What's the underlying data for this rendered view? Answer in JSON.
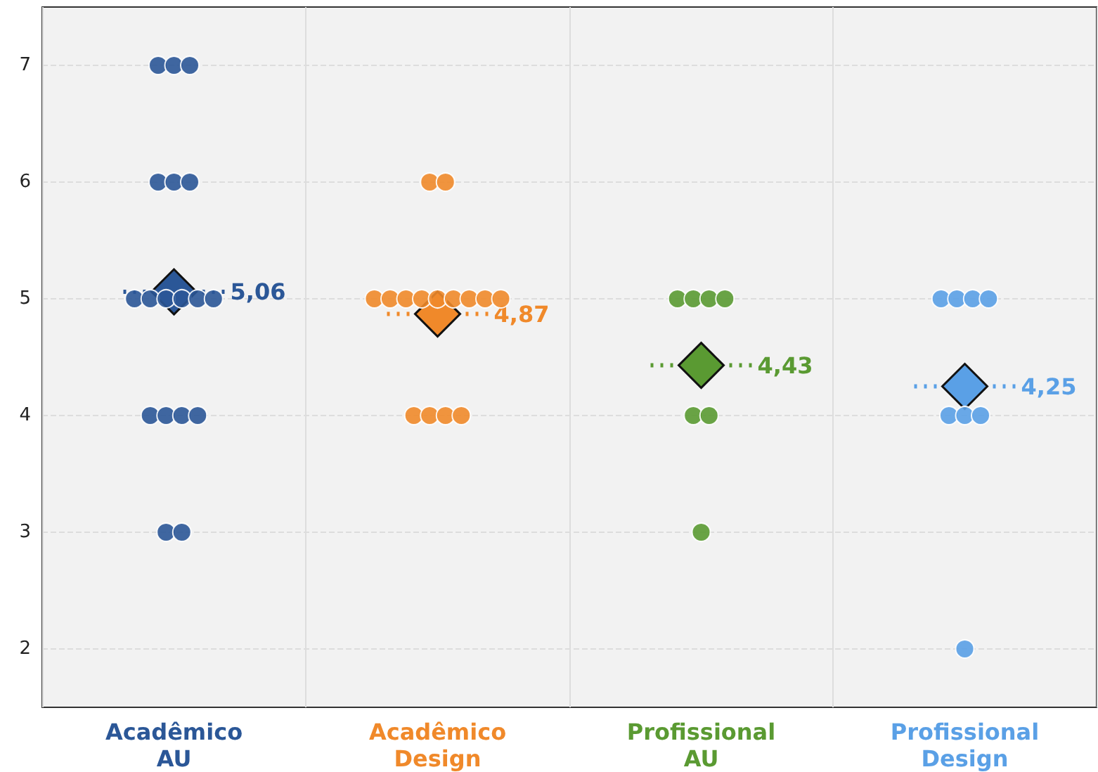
{
  "chart_data": {
    "type": "scatter",
    "categories": [
      "Acadêmico AU",
      "Acadêmico Design",
      "Profissional AU",
      "Profissional Design"
    ],
    "ylim": [
      1.5,
      7.5
    ],
    "yticks": [
      2,
      3,
      4,
      5,
      6,
      7
    ],
    "grid": true,
    "series": [
      {
        "marker": "circle",
        "color": "#2b5797",
        "x": [
          "Acadêmico AU",
          "Acadêmico AU",
          "Acadêmico AU",
          "Acadêmico AU",
          "Acadêmico AU",
          "Acadêmico AU",
          "Acadêmico AU",
          "Acadêmico AU",
          "Acadêmico AU",
          "Acadêmico AU",
          "Acadêmico AU",
          "Acadêmico AU",
          "Acadêmico AU",
          "Acadêmico AU",
          "Acadêmico AU",
          "Acadêmico AU",
          "Acadêmico AU",
          "Acadêmico AU"
        ],
        "values": [
          7,
          7,
          7,
          6,
          6,
          6,
          5,
          5,
          5,
          5,
          5,
          5,
          4,
          4,
          4,
          4,
          3,
          3
        ]
      },
      {
        "marker": "circle",
        "color": "#f0892a",
        "x": [
          "Acadêmico Design",
          "Acadêmico Design",
          "Acadêmico Design",
          "Acadêmico Design",
          "Acadêmico Design",
          "Acadêmico Design",
          "Acadêmico Design",
          "Acadêmico Design",
          "Acadêmico Design",
          "Acadêmico Design",
          "Acadêmico Design",
          "Acadêmico Design",
          "Acadêmico Design",
          "Acadêmico Design",
          "Acadêmico Design"
        ],
        "values": [
          6,
          6,
          5,
          5,
          5,
          5,
          5,
          5,
          5,
          5,
          5,
          4,
          4,
          4,
          4
        ]
      },
      {
        "marker": "circle",
        "color": "#5a9a32",
        "x": [
          "Profissional AU",
          "Profissional AU",
          "Profissional AU",
          "Profissional AU",
          "Profissional AU",
          "Profissional AU",
          "Profissional AU"
        ],
        "values": [
          5,
          5,
          5,
          5,
          4,
          4,
          3
        ]
      },
      {
        "marker": "circle",
        "color": "#5aa0e6",
        "x": [
          "Profissional Design",
          "Profissional Design",
          "Profissional Design",
          "Profissional Design",
          "Profissional Design",
          "Profissional Design",
          "Profissional Design",
          "Profissional Design"
        ],
        "values": [
          5,
          5,
          5,
          5,
          4,
          4,
          4,
          2
        ]
      },
      {
        "marker": "diamond",
        "line_style": "dotted",
        "x": [
          "Acadêmico AU",
          "Acadêmico Design",
          "Profissional AU",
          "Profissional Design"
        ],
        "values": [
          5.06,
          4.87,
          4.43,
          4.25
        ],
        "colors": [
          "#2b5797",
          "#f0892a",
          "#5a9a32",
          "#5aa0e6"
        ],
        "value_labels": [
          "5,06",
          "4,87",
          "4,43",
          "4,25"
        ]
      }
    ]
  }
}
